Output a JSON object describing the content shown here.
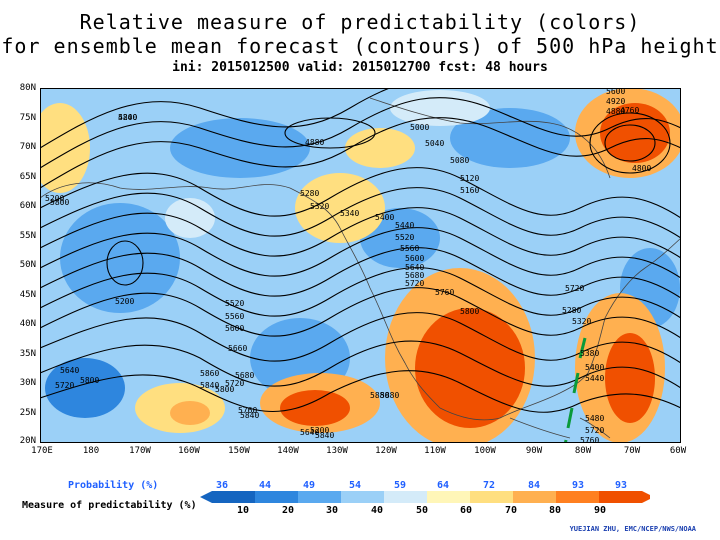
{
  "title": {
    "line1": "Relative measure of predictability (colors)",
    "line2": "for ensemble mean forecast (contours) of 500 hPa height",
    "line3": "ini: 2015012500 valid: 2015012700 fcst: 48 hours"
  },
  "map": {
    "lat_labels": [
      "80N",
      "75N",
      "70N",
      "65N",
      "60N",
      "55N",
      "50N",
      "45N",
      "40N",
      "35N",
      "30N",
      "25N",
      "20N"
    ],
    "lon_labels": [
      "170E",
      "180",
      "170W",
      "160W",
      "150W",
      "140W",
      "130W",
      "120W",
      "110W",
      "100W",
      "90W",
      "80W",
      "70W",
      "60W"
    ],
    "contour_labels": [
      "5200",
      "4880",
      "5000",
      "5040",
      "5080",
      "4800",
      "4760",
      "5120",
      "5160",
      "5200",
      "5280",
      "5320",
      "5340",
      "5400",
      "5440",
      "5520",
      "5560",
      "5600",
      "5640",
      "5680",
      "5720",
      "5760",
      "5800",
      "5840",
      "5880",
      "5200",
      "5520",
      "5560",
      "5600",
      "5660",
      "5680",
      "5720",
      "5760",
      "5800",
      "5840",
      "5860",
      "5880",
      "5640",
      "5720",
      "5800",
      "5840",
      "5640",
      "5720",
      "5280",
      "5320",
      "5380",
      "5400",
      "5440",
      "5480",
      "5720",
      "5760",
      "5800",
      "5200",
      "5600",
      "4920",
      "4880",
      "4840"
    ]
  },
  "colorbar": {
    "probability_label": "Probability (%)",
    "probability_ticks": [
      "36",
      "44",
      "49",
      "54",
      "59",
      "64",
      "72",
      "84",
      "93",
      "93"
    ],
    "measure_label": "Measure of predictability (%)",
    "measure_ticks": [
      "10",
      "20",
      "30",
      "40",
      "50",
      "60",
      "70",
      "80",
      "90"
    ],
    "colors": [
      "#1565c0",
      "#2e86de",
      "#5aa9ef",
      "#9bd0f7",
      "#d4ebf9",
      "#fff6b8",
      "#ffdf80",
      "#ffb050",
      "#ff8020",
      "#f05000"
    ]
  },
  "credit": "YUEJIAN ZHU, EMC/NCEP/NWS/NOAA",
  "colors": {
    "title": "#000000",
    "probability_text": "#2060ff",
    "credit": "#1a3fb0",
    "marker": "#0a9a3a"
  }
}
